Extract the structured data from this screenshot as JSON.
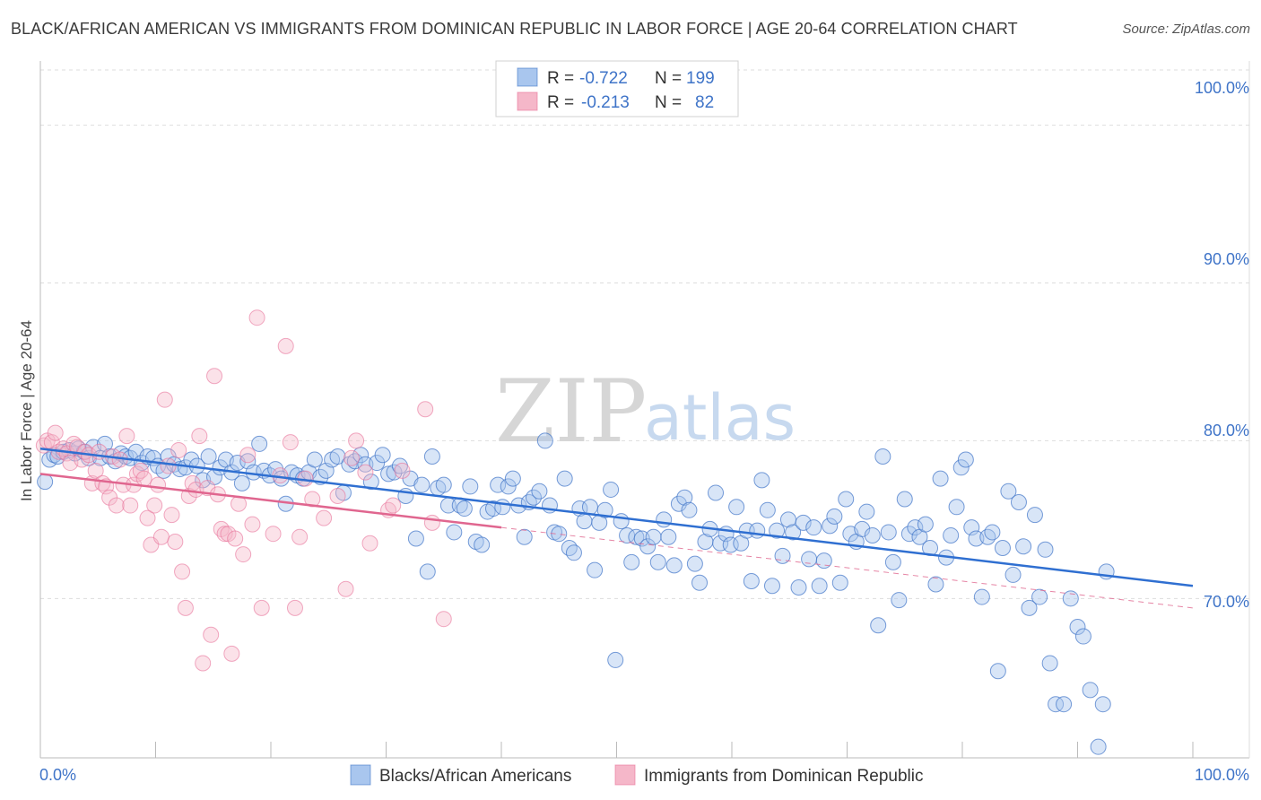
{
  "title": "BLACK/AFRICAN AMERICAN VS IMMIGRANTS FROM DOMINICAN REPUBLIC IN LABOR FORCE | AGE 20-64 CORRELATION CHART",
  "source": "Source: ZipAtlas.com",
  "watermark": {
    "zip": "ZIP",
    "atlas": "atlas"
  },
  "colors": {
    "blue": "#3f74c8",
    "blue_fill": "#a9c6ee",
    "blue_line": "#2f6fd1",
    "pink": "#e8729a",
    "pink_fill": "#f5b7c9",
    "pink_line": "#e0668f",
    "grid": "#dddddd",
    "axis": "#bbbbbb"
  },
  "legend": {
    "r_label": "R =",
    "n_label": "N =",
    "series1": {
      "r": "-0.722",
      "n": "199"
    },
    "series2": {
      "r": "-0.213",
      "n": "82"
    }
  },
  "chart_data": {
    "type": "scatter",
    "title": "BLACK/AFRICAN AMERICAN VS IMMIGRANTS FROM DOMINICAN REPUBLIC IN LABOR FORCE | AGE 20-64 CORRELATION CHART",
    "xlabel": "",
    "ylabel": "In Labor Force | Age 20-64",
    "xlim": [
      0,
      100
    ],
    "ylim": [
      59.9,
      103.5
    ],
    "x_tick_labels": [
      "0.0%",
      "100.0%"
    ],
    "y_ticks": [
      70,
      80,
      90,
      100
    ],
    "y_tick_labels": [
      "70.0%",
      "80.0%",
      "90.0%",
      "100.0%"
    ],
    "grid": true,
    "series": [
      {
        "name": "Blacks/African Americans",
        "r": -0.722,
        "n": 199,
        "trend": {
          "x": [
            0,
            100
          ],
          "y": [
            79.5,
            70.8
          ]
        },
        "points": [
          [
            0.4,
            77.4
          ],
          [
            0.8,
            78.8
          ],
          [
            1.2,
            79.1
          ],
          [
            1.5,
            79.0
          ],
          [
            2.0,
            79.3
          ],
          [
            2.5,
            79.4
          ],
          [
            3.0,
            79.2
          ],
          [
            3.3,
            79.5
          ],
          [
            3.8,
            79.3
          ],
          [
            4.2,
            78.9
          ],
          [
            4.6,
            79.6
          ],
          [
            5.2,
            78.9
          ],
          [
            5.6,
            79.8
          ],
          [
            6.0,
            79.0
          ],
          [
            6.5,
            78.7
          ],
          [
            7.0,
            79.2
          ],
          [
            7.4,
            79.0
          ],
          [
            7.8,
            78.9
          ],
          [
            8.3,
            79.3
          ],
          [
            8.8,
            78.6
          ],
          [
            9.3,
            79.0
          ],
          [
            9.8,
            78.9
          ],
          [
            10.2,
            78.4
          ],
          [
            10.7,
            78.1
          ],
          [
            11.1,
            79.0
          ],
          [
            11.6,
            78.5
          ],
          [
            12.1,
            78.2
          ],
          [
            12.6,
            78.3
          ],
          [
            13.1,
            78.8
          ],
          [
            13.6,
            78.4
          ],
          [
            14.1,
            77.5
          ],
          [
            14.6,
            79.0
          ],
          [
            15.1,
            77.7
          ],
          [
            15.6,
            78.3
          ],
          [
            16.1,
            78.8
          ],
          [
            16.6,
            78.0
          ],
          [
            17.1,
            78.6
          ],
          [
            17.5,
            77.3
          ],
          [
            18.0,
            78.7
          ],
          [
            18.5,
            78.0
          ],
          [
            19.0,
            79.8
          ],
          [
            19.4,
            78.1
          ],
          [
            19.9,
            77.8
          ],
          [
            20.4,
            78.2
          ],
          [
            20.9,
            77.6
          ],
          [
            21.3,
            76.0
          ],
          [
            21.8,
            78.0
          ],
          [
            22.3,
            77.8
          ],
          [
            22.8,
            77.6
          ],
          [
            23.3,
            78.0
          ],
          [
            23.8,
            78.8
          ],
          [
            24.3,
            77.7
          ],
          [
            24.8,
            78.1
          ],
          [
            25.3,
            78.8
          ],
          [
            25.8,
            79.0
          ],
          [
            26.3,
            76.7
          ],
          [
            26.8,
            78.5
          ],
          [
            27.3,
            78.7
          ],
          [
            27.8,
            79.1
          ],
          [
            28.2,
            78.5
          ],
          [
            28.7,
            77.4
          ],
          [
            29.2,
            78.6
          ],
          [
            29.7,
            79.1
          ],
          [
            30.2,
            77.9
          ],
          [
            30.7,
            78.0
          ],
          [
            31.2,
            78.4
          ],
          [
            31.7,
            76.5
          ],
          [
            32.1,
            77.6
          ],
          [
            32.6,
            73.8
          ],
          [
            33.1,
            77.2
          ],
          [
            33.6,
            71.7
          ],
          [
            34.0,
            79.0
          ],
          [
            34.5,
            77.0
          ],
          [
            35.0,
            77.2
          ],
          [
            35.4,
            75.9
          ],
          [
            35.9,
            74.2
          ],
          [
            36.4,
            75.9
          ],
          [
            36.8,
            75.7
          ],
          [
            37.3,
            77.1
          ],
          [
            37.8,
            73.6
          ],
          [
            38.3,
            73.4
          ],
          [
            38.8,
            75.5
          ],
          [
            39.3,
            75.7
          ],
          [
            39.7,
            77.2
          ],
          [
            40.1,
            75.8
          ],
          [
            40.6,
            77.1
          ],
          [
            41.0,
            77.6
          ],
          [
            41.5,
            75.9
          ],
          [
            42.0,
            73.9
          ],
          [
            42.4,
            76.1
          ],
          [
            42.8,
            76.4
          ],
          [
            43.3,
            76.8
          ],
          [
            43.8,
            80.0
          ],
          [
            44.2,
            75.9
          ],
          [
            44.6,
            74.2
          ],
          [
            45.0,
            74.1
          ],
          [
            45.5,
            77.6
          ],
          [
            45.9,
            73.2
          ],
          [
            46.3,
            72.9
          ],
          [
            46.8,
            75.7
          ],
          [
            47.2,
            74.9
          ],
          [
            47.7,
            75.8
          ],
          [
            48.1,
            71.8
          ],
          [
            48.5,
            74.8
          ],
          [
            49.0,
            75.6
          ],
          [
            49.5,
            76.9
          ],
          [
            49.9,
            66.1
          ],
          [
            50.4,
            74.9
          ],
          [
            50.9,
            74.0
          ],
          [
            51.3,
            72.3
          ],
          [
            51.7,
            73.9
          ],
          [
            52.2,
            73.8
          ],
          [
            52.7,
            73.3
          ],
          [
            53.2,
            73.9
          ],
          [
            53.6,
            72.3
          ],
          [
            54.1,
            75.0
          ],
          [
            54.5,
            73.9
          ],
          [
            55.0,
            72.1
          ],
          [
            55.4,
            76.0
          ],
          [
            55.9,
            76.4
          ],
          [
            56.3,
            75.6
          ],
          [
            56.8,
            72.2
          ],
          [
            57.2,
            71.0
          ],
          [
            57.7,
            73.6
          ],
          [
            58.1,
            74.4
          ],
          [
            58.6,
            76.7
          ],
          [
            59.0,
            73.5
          ],
          [
            59.5,
            74.1
          ],
          [
            59.9,
            73.4
          ],
          [
            60.4,
            75.8
          ],
          [
            60.8,
            73.5
          ],
          [
            61.3,
            74.3
          ],
          [
            61.7,
            71.1
          ],
          [
            62.2,
            74.3
          ],
          [
            62.6,
            77.5
          ],
          [
            63.1,
            75.6
          ],
          [
            63.5,
            70.8
          ],
          [
            63.9,
            74.3
          ],
          [
            64.4,
            72.7
          ],
          [
            64.9,
            75.0
          ],
          [
            65.3,
            74.2
          ],
          [
            65.8,
            70.7
          ],
          [
            66.2,
            74.8
          ],
          [
            66.7,
            72.5
          ],
          [
            67.1,
            74.5
          ],
          [
            67.6,
            70.8
          ],
          [
            68.0,
            72.4
          ],
          [
            68.5,
            74.6
          ],
          [
            68.9,
            75.2
          ],
          [
            69.4,
            71.0
          ],
          [
            69.9,
            76.3
          ],
          [
            70.3,
            74.1
          ],
          [
            70.8,
            73.6
          ],
          [
            71.3,
            74.4
          ],
          [
            71.7,
            75.5
          ],
          [
            72.2,
            74.0
          ],
          [
            72.7,
            68.3
          ],
          [
            73.1,
            79.0
          ],
          [
            73.6,
            74.2
          ],
          [
            74.0,
            72.3
          ],
          [
            74.5,
            69.9
          ],
          [
            75.0,
            76.3
          ],
          [
            75.4,
            74.1
          ],
          [
            75.9,
            74.5
          ],
          [
            76.3,
            73.9
          ],
          [
            76.8,
            74.7
          ],
          [
            77.2,
            73.2
          ],
          [
            77.7,
            70.9
          ],
          [
            78.1,
            77.6
          ],
          [
            78.6,
            72.6
          ],
          [
            79.0,
            74.0
          ],
          [
            79.5,
            75.8
          ],
          [
            79.9,
            78.3
          ],
          [
            80.3,
            78.8
          ],
          [
            80.8,
            74.5
          ],
          [
            81.2,
            73.8
          ],
          [
            81.7,
            70.1
          ],
          [
            82.2,
            73.9
          ],
          [
            82.6,
            74.2
          ],
          [
            83.1,
            65.4
          ],
          [
            83.5,
            73.2
          ],
          [
            84.0,
            76.8
          ],
          [
            84.4,
            71.5
          ],
          [
            84.9,
            76.1
          ],
          [
            85.3,
            73.3
          ],
          [
            85.8,
            69.4
          ],
          [
            86.3,
            75.3
          ],
          [
            86.7,
            70.1
          ],
          [
            87.2,
            73.1
          ],
          [
            87.6,
            65.9
          ],
          [
            88.1,
            63.3
          ],
          [
            88.8,
            63.3
          ],
          [
            89.4,
            70.0
          ],
          [
            90.0,
            68.2
          ],
          [
            90.5,
            67.6
          ],
          [
            91.1,
            64.2
          ],
          [
            91.8,
            60.6
          ],
          [
            92.2,
            63.3
          ],
          [
            92.5,
            71.7
          ]
        ]
      },
      {
        "name": "Immigrants from Dominican Republic",
        "r": -0.213,
        "n": 82,
        "trend": {
          "x": [
            0,
            40
          ],
          "y": [
            77.9,
            74.5
          ]
        },
        "trend_dashed": {
          "x": [
            40,
            100
          ],
          "y": [
            74.5,
            69.4
          ]
        },
        "points": [
          [
            0.3,
            79.7
          ],
          [
            0.6,
            80.0
          ],
          [
            1.0,
            79.9
          ],
          [
            1.3,
            80.5
          ],
          [
            1.6,
            79.3
          ],
          [
            2.0,
            79.5
          ],
          [
            2.3,
            79.2
          ],
          [
            2.6,
            78.6
          ],
          [
            2.9,
            79.8
          ],
          [
            3.2,
            79.6
          ],
          [
            3.6,
            78.8
          ],
          [
            3.9,
            79.3
          ],
          [
            4.2,
            79.1
          ],
          [
            4.5,
            77.3
          ],
          [
            4.8,
            78.1
          ],
          [
            5.1,
            79.3
          ],
          [
            5.4,
            77.3
          ],
          [
            5.7,
            77.1
          ],
          [
            6.0,
            76.4
          ],
          [
            6.3,
            79.0
          ],
          [
            6.6,
            75.9
          ],
          [
            6.9,
            78.8
          ],
          [
            7.2,
            77.2
          ],
          [
            7.5,
            80.3
          ],
          [
            7.8,
            75.9
          ],
          [
            8.1,
            77.2
          ],
          [
            8.4,
            77.9
          ],
          [
            8.7,
            78.1
          ],
          [
            9.0,
            77.6
          ],
          [
            9.3,
            75.1
          ],
          [
            9.6,
            73.4
          ],
          [
            9.9,
            75.9
          ],
          [
            10.2,
            77.2
          ],
          [
            10.5,
            73.9
          ],
          [
            10.8,
            82.6
          ],
          [
            11.1,
            78.4
          ],
          [
            11.4,
            75.3
          ],
          [
            11.7,
            73.6
          ],
          [
            12.0,
            79.4
          ],
          [
            12.3,
            71.7
          ],
          [
            12.6,
            69.4
          ],
          [
            12.9,
            76.5
          ],
          [
            13.2,
            77.3
          ],
          [
            13.5,
            76.9
          ],
          [
            13.8,
            80.3
          ],
          [
            14.1,
            65.9
          ],
          [
            14.5,
            77.0
          ],
          [
            14.8,
            67.7
          ],
          [
            15.1,
            84.1
          ],
          [
            15.4,
            76.6
          ],
          [
            15.7,
            74.4
          ],
          [
            16.0,
            74.1
          ],
          [
            16.3,
            74.1
          ],
          [
            16.6,
            66.5
          ],
          [
            16.9,
            73.8
          ],
          [
            17.2,
            76.0
          ],
          [
            17.6,
            72.8
          ],
          [
            18.0,
            79.1
          ],
          [
            18.4,
            74.7
          ],
          [
            18.8,
            87.8
          ],
          [
            19.2,
            69.4
          ],
          [
            20.2,
            74.1
          ],
          [
            20.8,
            77.8
          ],
          [
            21.3,
            86.0
          ],
          [
            21.7,
            79.9
          ],
          [
            22.1,
            69.4
          ],
          [
            22.5,
            73.9
          ],
          [
            23.0,
            77.6
          ],
          [
            23.6,
            76.3
          ],
          [
            24.6,
            75.1
          ],
          [
            25.8,
            76.5
          ],
          [
            26.5,
            70.6
          ],
          [
            27.0,
            78.9
          ],
          [
            27.4,
            80.0
          ],
          [
            28.2,
            78.0
          ],
          [
            28.6,
            73.5
          ],
          [
            30.2,
            75.6
          ],
          [
            30.6,
            75.9
          ],
          [
            31.4,
            78.1
          ],
          [
            33.4,
            82.0
          ],
          [
            34.0,
            74.8
          ],
          [
            35.0,
            68.7
          ]
        ]
      }
    ]
  },
  "axes": {
    "ylabel": "In Labor Force | Age 20-64",
    "x_min_label": "0.0%",
    "x_max_label": "100.0%",
    "y_labels": [
      "70.0%",
      "80.0%",
      "90.0%",
      "100.0%"
    ]
  },
  "bottom_legend": {
    "series1": "Blacks/African Americans",
    "series2": "Immigrants from Dominican Republic"
  }
}
